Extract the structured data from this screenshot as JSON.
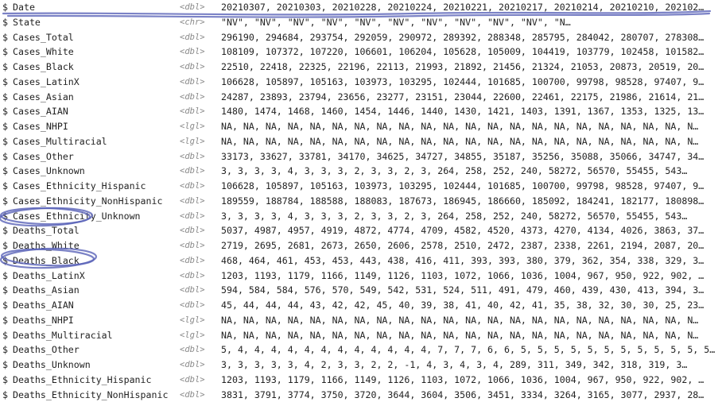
{
  "columns": [
    {
      "name": "Date",
      "type": "<dbl>",
      "values": "20210307, 20210303, 20210228, 20210224, 20210221, 20210217, 20210214, 20210210, 202102…"
    },
    {
      "name": "State",
      "type": "<chr>",
      "values": "\"NV\", \"NV\", \"NV\", \"NV\", \"NV\", \"NV\", \"NV\", \"NV\", \"NV\", \"NV\", \"N…"
    },
    {
      "name": "Cases_Total",
      "type": "<dbl>",
      "values": "296190, 294684, 293754, 292059, 290972, 289392, 288348, 285795, 284042, 280707, 278308…"
    },
    {
      "name": "Cases_White",
      "type": "<dbl>",
      "values": "108109, 107372, 107220, 106601, 106204, 105628, 105009, 104419, 103779, 102458, 101582…"
    },
    {
      "name": "Cases_Black",
      "type": "<dbl>",
      "values": "22510, 22418, 22325, 22196, 22113, 21993, 21892, 21456, 21324, 21053, 20873, 20519, 20…"
    },
    {
      "name": "Cases_LatinX",
      "type": "<dbl>",
      "values": "106628, 105897, 105163, 103973, 103295, 102444, 101685, 100700, 99798, 98528, 97407, 9…"
    },
    {
      "name": "Cases_Asian",
      "type": "<dbl>",
      "values": "24287, 23893, 23794, 23656, 23277, 23151, 23044, 22600, 22461, 22175, 21986, 21614, 21…"
    },
    {
      "name": "Cases_AIAN",
      "type": "<dbl>",
      "values": "1480, 1474, 1468, 1460, 1454, 1446, 1440, 1430, 1421, 1403, 1391, 1367, 1353, 1325, 13…"
    },
    {
      "name": "Cases_NHPI",
      "type": "<lgl>",
      "values": "NA, NA, NA, NA, NA, NA, NA, NA, NA, NA, NA, NA, NA, NA, NA, NA, NA, NA, NA, NA, NA, N…"
    },
    {
      "name": "Cases_Multiracial",
      "type": "<lgl>",
      "values": "NA, NA, NA, NA, NA, NA, NA, NA, NA, NA, NA, NA, NA, NA, NA, NA, NA, NA, NA, NA, NA, N…"
    },
    {
      "name": "Cases_Other",
      "type": "<dbl>",
      "values": "33173, 33627, 33781, 34170, 34625, 34727, 34855, 35187, 35256, 35088, 35066, 34747, 34…"
    },
    {
      "name": "Cases_Unknown",
      "type": "<dbl>",
      "values": "3, 3, 3, 3, 4, 3, 3, 3, 2, 3, 3, 2, 3, 264, 258, 252, 240, 58272, 56570, 55455, 543…"
    },
    {
      "name": "Cases_Ethnicity_Hispanic",
      "type": "<dbl>",
      "values": "106628, 105897, 105163, 103973, 103295, 102444, 101685, 100700, 99798, 98528, 97407, 9…"
    },
    {
      "name": "Cases_Ethnicity_NonHispanic",
      "type": "<dbl>",
      "values": "189559, 188784, 188588, 188083, 187673, 186945, 186660, 185092, 184241, 182177, 180898…"
    },
    {
      "name": "Cases_Ethnicity_Unknown",
      "type": "<dbl>",
      "values": "3, 3, 3, 3, 4, 3, 3, 3, 2, 3, 3, 2, 3, 264, 258, 252, 240, 58272, 56570, 55455, 543…"
    },
    {
      "name": "Deaths_Total",
      "type": "<dbl>",
      "values": "5037, 4987, 4957, 4919, 4872, 4774, 4709, 4582, 4520, 4373, 4270, 4134, 4026, 3863, 37…"
    },
    {
      "name": "Deaths_White",
      "type": "<dbl>",
      "values": "2719, 2695, 2681, 2673, 2650, 2606, 2578, 2510, 2472, 2387, 2338, 2261, 2194, 2087, 20…"
    },
    {
      "name": "Deaths_Black",
      "type": "<dbl>",
      "values": "468, 464, 461, 453, 453, 443, 438, 416, 411, 393, 393, 380, 379, 362, 354, 338, 329, 3…"
    },
    {
      "name": "Deaths_LatinX",
      "type": "<dbl>",
      "values": "1203, 1193, 1179, 1166, 1149, 1126, 1103, 1072, 1066, 1036, 1004, 967, 950, 922, 902, …"
    },
    {
      "name": "Deaths_Asian",
      "type": "<dbl>",
      "values": "594, 584, 584, 576, 570, 549, 542, 531, 524, 511, 491, 479, 460, 439, 430, 413, 394, 3…"
    },
    {
      "name": "Deaths_AIAN",
      "type": "<dbl>",
      "values": "45, 44, 44, 44, 43, 42, 42, 45, 40, 39, 38, 41, 40, 42, 41, 35, 38, 32, 30, 30, 25, 23…"
    },
    {
      "name": "Deaths_NHPI",
      "type": "<lgl>",
      "values": "NA, NA, NA, NA, NA, NA, NA, NA, NA, NA, NA, NA, NA, NA, NA, NA, NA, NA, NA, NA, NA, N…"
    },
    {
      "name": "Deaths_Multiracial",
      "type": "<lgl>",
      "values": "NA, NA, NA, NA, NA, NA, NA, NA, NA, NA, NA, NA, NA, NA, NA, NA, NA, NA, NA, NA, NA, N…"
    },
    {
      "name": "Deaths_Other",
      "type": "<dbl>",
      "values": "5, 4, 4, 4, 4, 4, 4, 4, 4, 4, 4, 4, 4, 7, 7, 7, 6, 6, 5, 5, 5, 5, 5, 5, 5, 5, 5, 5, 5, 5…"
    },
    {
      "name": "Deaths_Unknown",
      "type": "<dbl>",
      "values": "3, 3, 3, 3, 3, 4, 2, 3, 3, 2, 2, -1, 4, 3, 4, 3, 4, 289, 311, 349, 342, 318, 319, 3…"
    },
    {
      "name": "Deaths_Ethnicity_Hispanic",
      "type": "<dbl>",
      "values": "1203, 1193, 1179, 1166, 1149, 1126, 1103, 1072, 1066, 1036, 1004, 967, 950, 922, 902, …"
    },
    {
      "name": "Deaths_Ethnicity_NonHispanic",
      "type": "<dbl>",
      "values": "3831, 3791, 3774, 3750, 3720, 3644, 3604, 3506, 3451, 3334, 3264, 3165, 3077, 2937, 28…"
    }
  ],
  "annotation_color": "#5a63b8"
}
